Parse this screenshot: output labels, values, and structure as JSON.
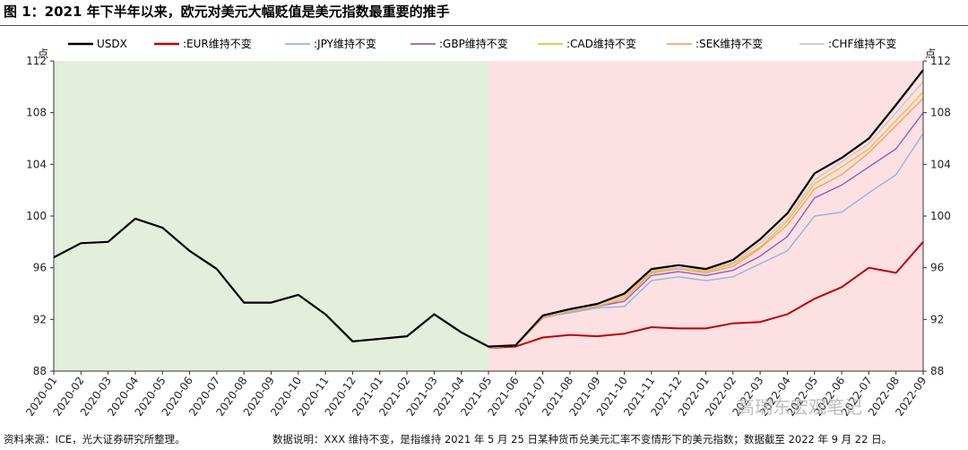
{
  "title": "图 1：2021 年下半年以来，欧元对美元大幅贬值是美元指数最重要的推手",
  "footer": {
    "source": "资料来源：ICE，光大证券研究所整理。",
    "note": "数据说明：XXX 维持不变，是指维持 2021 年 5 月 25 日某种货币兑美元汇率不变情形下的美元指数；数据截至 2022 年 9 月 22 日。"
  },
  "watermark": "高瑞东宏观笔记",
  "chart_data": {
    "type": "line",
    "ylabel_left": "点",
    "ylabel_right": "点",
    "ylim": [
      88,
      112
    ],
    "yticks": [
      88,
      92,
      96,
      100,
      104,
      108,
      112
    ],
    "x_categories": [
      "2020-01",
      "2020-02",
      "2020-03",
      "2020-04",
      "2020-05",
      "2020-06",
      "2020-07",
      "2020-08",
      "2020-09",
      "2020-10",
      "2020-11",
      "2020-12",
      "2021-01",
      "2021-02",
      "2021-03",
      "2021-04",
      "2021-05",
      "2021-06",
      "2021-07",
      "2021-08",
      "2021-09",
      "2021-10",
      "2021-11",
      "2021-12",
      "2022-01",
      "2022-02",
      "2022-03",
      "2022-04",
      "2022-05",
      "2022-06",
      "2022-07",
      "2022-08",
      "2022-09"
    ],
    "shading": [
      {
        "from": "2020-01",
        "to": "2021-05",
        "color": "#e2efda"
      },
      {
        "from": "2021-05",
        "to": "2022-09",
        "color": "#fde0e2"
      }
    ],
    "legend_position": "top",
    "series": [
      {
        "name": "USDX",
        "color": "#000000",
        "width": 2.2,
        "values": [
          96.8,
          97.9,
          98.0,
          99.8,
          99.1,
          97.3,
          95.9,
          93.3,
          93.3,
          93.9,
          92.4,
          90.3,
          90.5,
          90.7,
          92.4,
          91.0,
          89.9,
          90.0,
          92.3,
          92.8,
          93.2,
          94.0,
          95.9,
          96.2,
          95.9,
          96.6,
          98.2,
          100.2,
          103.3,
          104.5,
          106.0,
          108.6,
          111.3
        ]
      },
      {
        "name": ":EUR维持不变",
        "color": "#c00000",
        "width": 2.0,
        "values": [
          null,
          null,
          null,
          null,
          null,
          null,
          null,
          null,
          null,
          null,
          null,
          null,
          null,
          null,
          null,
          null,
          89.8,
          89.9,
          90.6,
          90.8,
          90.7,
          90.9,
          91.4,
          91.3,
          91.3,
          91.7,
          91.8,
          92.4,
          93.6,
          94.5,
          96.0,
          95.6,
          98.0
        ]
      },
      {
        "name": ":JPY维持不变",
        "color": "#8fb4e3",
        "width": 1.4,
        "values": [
          null,
          null,
          null,
          null,
          null,
          null,
          null,
          null,
          null,
          null,
          null,
          null,
          null,
          null,
          null,
          null,
          89.8,
          90.0,
          92.2,
          92.5,
          92.9,
          93.0,
          95.0,
          95.3,
          95.0,
          95.3,
          96.3,
          97.3,
          100.0,
          100.3,
          101.8,
          103.2,
          106.4
        ]
      },
      {
        "name": ":GBP维持不变",
        "color": "#8e5fb8",
        "width": 1.4,
        "values": [
          null,
          null,
          null,
          null,
          null,
          null,
          null,
          null,
          null,
          null,
          null,
          null,
          null,
          null,
          null,
          null,
          89.8,
          90.0,
          92.1,
          92.6,
          93.0,
          93.4,
          95.4,
          95.7,
          95.4,
          95.8,
          96.9,
          98.4,
          101.4,
          102.4,
          103.8,
          105.2,
          108.0
        ]
      },
      {
        "name": ":CAD维持不变",
        "color": "#f2c12e",
        "width": 1.4,
        "values": [
          null,
          null,
          null,
          null,
          null,
          null,
          null,
          null,
          null,
          null,
          null,
          null,
          null,
          null,
          null,
          null,
          89.8,
          90.0,
          92.2,
          92.7,
          93.1,
          93.8,
          95.7,
          96.0,
          95.7,
          96.3,
          97.6,
          99.6,
          102.5,
          103.8,
          105.2,
          107.4,
          109.6
        ]
      },
      {
        "name": ":SEK维持不变",
        "color": "#f4a460",
        "width": 1.4,
        "values": [
          null,
          null,
          null,
          null,
          null,
          null,
          null,
          null,
          null,
          null,
          null,
          null,
          null,
          null,
          null,
          null,
          89.8,
          90.0,
          92.1,
          92.6,
          93.0,
          93.6,
          95.6,
          95.9,
          95.6,
          96.1,
          97.5,
          99.3,
          102.1,
          103.2,
          104.9,
          107.0,
          109.1
        ]
      },
      {
        "name": ":CHF维持不变",
        "color": "#c8c8c8",
        "width": 1.4,
        "values": [
          null,
          null,
          null,
          null,
          null,
          null,
          null,
          null,
          null,
          null,
          null,
          null,
          null,
          null,
          null,
          null,
          89.8,
          90.0,
          92.2,
          92.7,
          93.1,
          93.9,
          95.8,
          96.0,
          95.8,
          96.4,
          97.9,
          99.8,
          102.8,
          104.2,
          105.6,
          108.0,
          110.4
        ]
      }
    ]
  }
}
